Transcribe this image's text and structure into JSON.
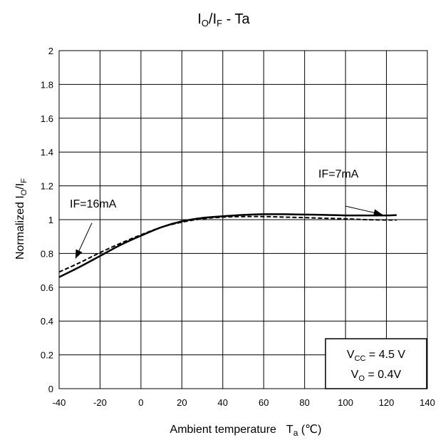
{
  "chart_data": {
    "type": "line",
    "title": {
      "a": "I",
      "a_sub": "O",
      "b": "/I",
      "b_sub": "F",
      "c": " - Ta"
    },
    "xlabel": {
      "text": "Ambient temperature",
      "sym": "T",
      "sym_sub": "a",
      "unit": " (℃)"
    },
    "ylabel": {
      "text": "Normalized ",
      "a": "I",
      "a_sub": "O",
      "b": "/I",
      "b_sub": "F"
    },
    "xlim": [
      -40,
      140
    ],
    "ylim": [
      0,
      2
    ],
    "x_ticks": [
      "-40",
      "-20",
      "0",
      "20",
      "40",
      "60",
      "80",
      "100",
      "120",
      "140"
    ],
    "y_ticks": [
      "0",
      "0.2",
      "0.4",
      "0.6",
      "0.8",
      "1",
      "1.2",
      "1.4",
      "1.6",
      "1.8",
      "2"
    ],
    "grid": true,
    "series": [
      {
        "name": "IF=7mA",
        "style": "solid",
        "x": [
          -40,
          -30,
          -20,
          -10,
          0,
          10,
          20,
          30,
          40,
          50,
          60,
          70,
          80,
          90,
          100,
          110,
          120,
          125
        ],
        "y": [
          0.66,
          0.72,
          0.785,
          0.85,
          0.905,
          0.955,
          0.99,
          1.01,
          1.02,
          1.028,
          1.032,
          1.032,
          1.03,
          1.028,
          1.025,
          1.025,
          1.025,
          1.027
        ]
      },
      {
        "name": "IF=16mA",
        "style": "dashed",
        "x": [
          -40,
          -30,
          -20,
          -10,
          0,
          10,
          20,
          30,
          40,
          50,
          60,
          70,
          80,
          90,
          100,
          110,
          120,
          125
        ],
        "y": [
          0.69,
          0.745,
          0.805,
          0.86,
          0.91,
          0.955,
          0.985,
          1.005,
          1.015,
          1.018,
          1.018,
          1.015,
          1.012,
          1.008,
          1.005,
          1.0,
          0.998,
          0.998
        ]
      }
    ],
    "annotations": [
      {
        "text": "IF=7mA",
        "arrow_from": [
          100,
          1.08
        ],
        "arrow_to": [
          118,
          1.03
        ]
      },
      {
        "text": "IF=16mA",
        "arrow_from": [
          -24,
          0.98
        ],
        "arrow_to": [
          -32,
          0.77
        ]
      }
    ],
    "conditions": {
      "vcc": {
        "a": "V",
        "a_sub": "CC",
        "rest": " = 4.5 V"
      },
      "vo": {
        "a": "V",
        "a_sub": "O",
        "rest": " = 0.4V"
      }
    }
  }
}
